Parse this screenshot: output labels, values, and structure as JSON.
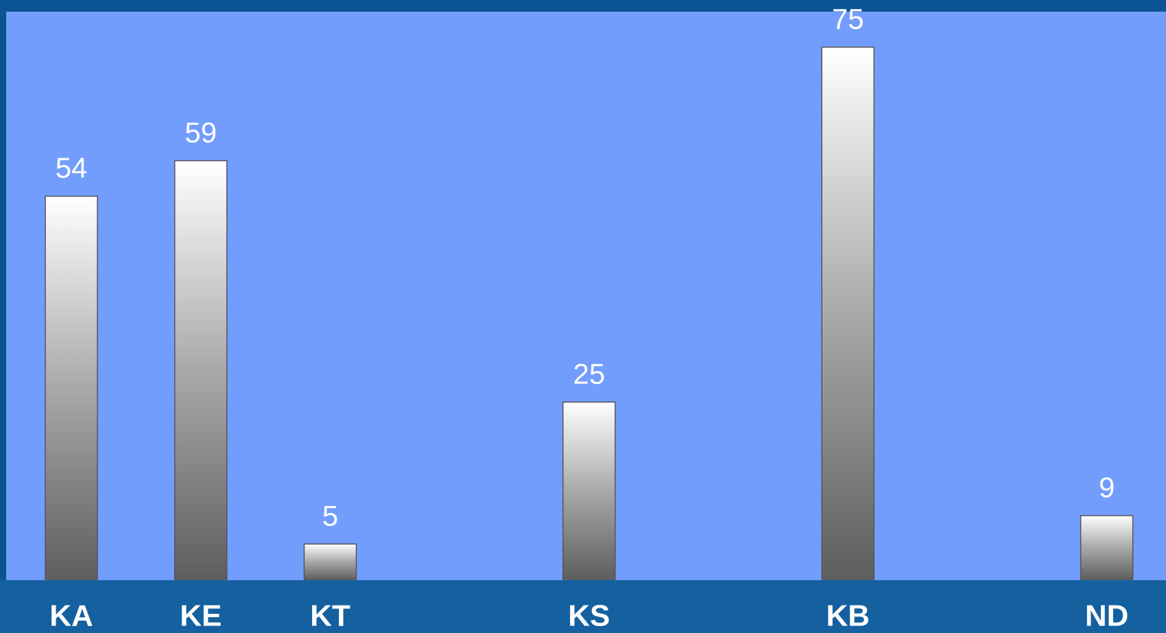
{
  "chart_data": {
    "type": "bar",
    "categories": [
      "KA",
      "KE",
      "KT",
      null,
      "KS",
      null,
      "KB",
      null,
      "ND"
    ],
    "values": [
      54,
      59,
      5,
      null,
      25,
      null,
      75,
      null,
      9
    ],
    "ylim": [
      0,
      80
    ],
    "grid": false
  }
}
